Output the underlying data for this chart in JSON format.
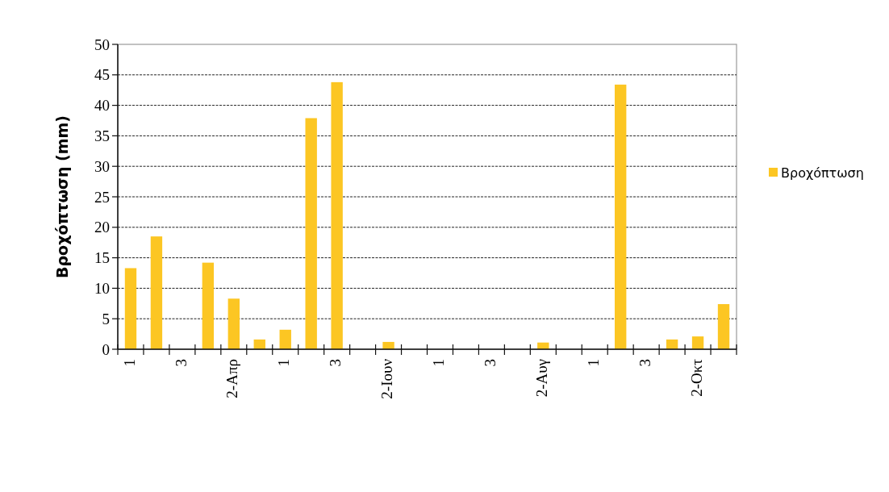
{
  "chart_data": {
    "type": "bar",
    "ylabel": "Βροχόπτωση (mm)",
    "categories": [
      "1",
      null,
      "3",
      null,
      "2-Απρ",
      null,
      "1",
      null,
      "3",
      null,
      "2-Ιουν",
      null,
      "1",
      null,
      "3",
      null,
      "2-Αυγ",
      null,
      "1",
      null,
      "3",
      null,
      "2-Οκτ",
      null
    ],
    "series": [
      {
        "name": "Βροχόπτωση",
        "color": "#fcc623",
        "values": [
          13.3,
          18.5,
          0,
          14.2,
          8.3,
          1.6,
          3.2,
          37.9,
          43.8,
          0,
          1.2,
          0,
          0,
          0,
          0,
          0,
          1.1,
          0,
          0,
          43.4,
          0,
          1.6,
          2.1,
          7.4
        ]
      }
    ],
    "ylim": [
      0,
      50
    ],
    "yticks": [
      0,
      5,
      10,
      15,
      20,
      25,
      30,
      35,
      40,
      45,
      50
    ],
    "grid": "y",
    "legend": "right"
  }
}
